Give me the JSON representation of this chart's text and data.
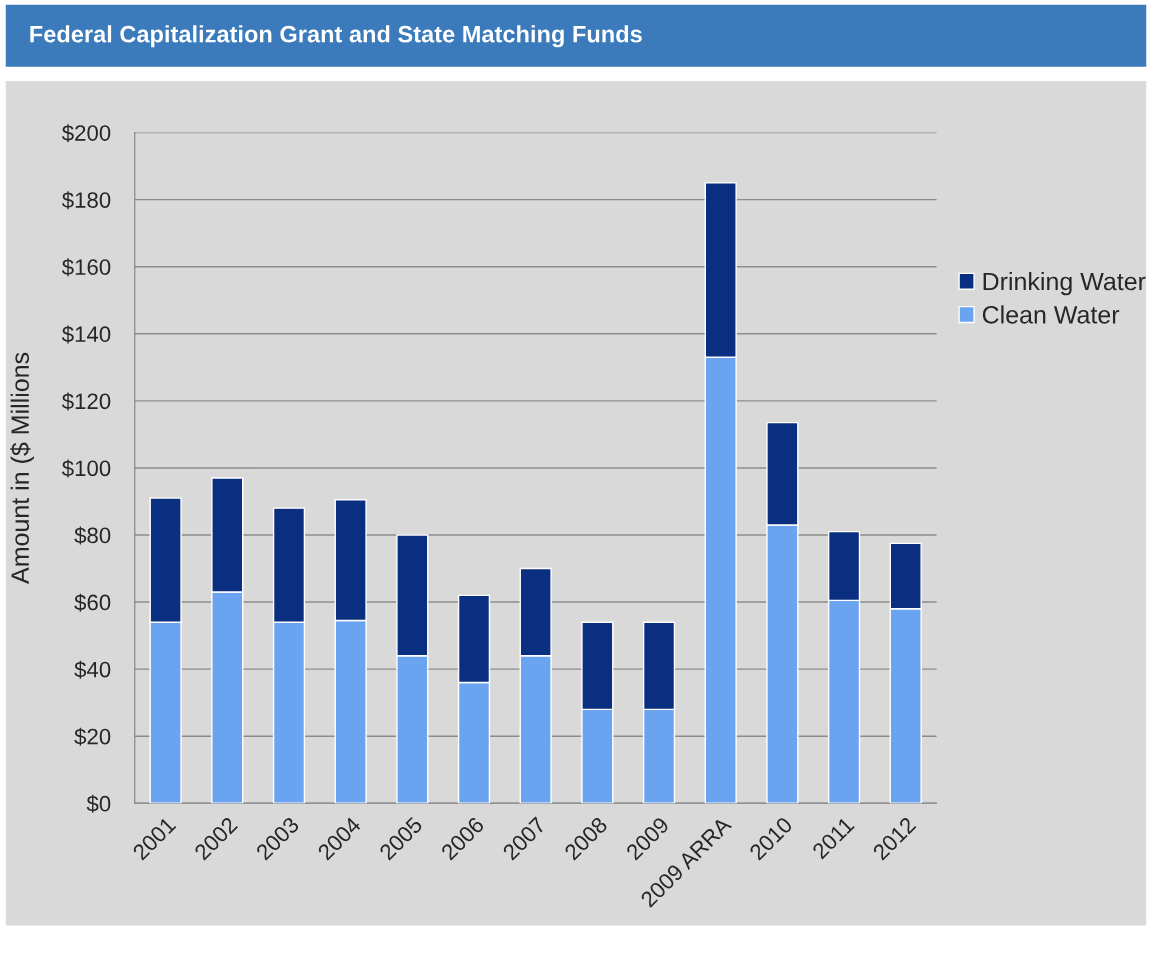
{
  "chart_data": {
    "type": "bar",
    "title": "Federal Capitalization Grant and State Matching Funds",
    "ylabel": "Amount in ($ Millions",
    "categories": [
      "2001",
      "2002",
      "2003",
      "2004",
      "2005",
      "2006",
      "2007",
      "2008",
      "2009",
      "2009 ARRA",
      "2010",
      "2011",
      "2012"
    ],
    "stacked": true,
    "series": [
      {
        "name": "Clean Water",
        "color": "#6aa3f0",
        "values": [
          54,
          63,
          54,
          54.5,
          44,
          36,
          44,
          28,
          28,
          133,
          83,
          60.5,
          58
        ]
      },
      {
        "name": "Drinking Water",
        "color": "#0b2f80",
        "values": [
          37,
          34,
          34,
          36,
          36,
          26,
          26,
          26,
          26,
          52,
          30.5,
          20.5,
          19.5
        ]
      }
    ],
    "ylim": [
      0,
      200
    ],
    "yticks": [
      {
        "value": 0,
        "label": "$0"
      },
      {
        "value": 20,
        "label": "$20"
      },
      {
        "value": 40,
        "label": "$40"
      },
      {
        "value": 60,
        "label": "$60"
      },
      {
        "value": 80,
        "label": "$80"
      },
      {
        "value": 100,
        "label": "$100"
      },
      {
        "value": 120,
        "label": "$120"
      },
      {
        "value": 140,
        "label": "$140"
      },
      {
        "value": 160,
        "label": "$160"
      },
      {
        "value": 180,
        "label": "$180"
      },
      {
        "value": 200,
        "label": "$200"
      }
    ],
    "grid": "y",
    "legend": "right"
  }
}
